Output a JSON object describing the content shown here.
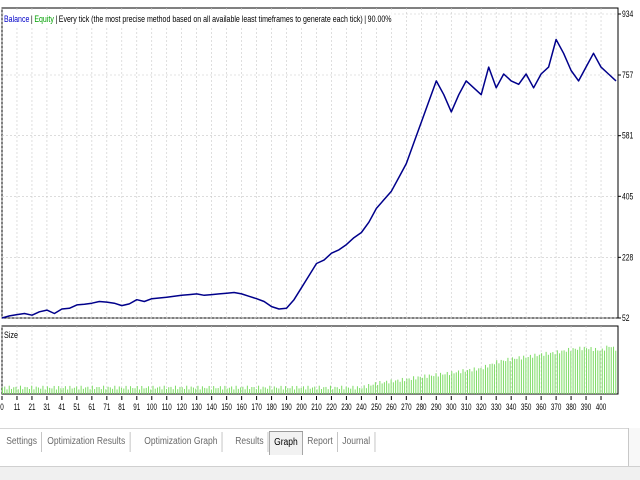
{
  "legend": {
    "balance": "Balance",
    "equity": "Equity",
    "description": "Every tick (the most precise method based on all available least timeframes to generate each tick)",
    "quality": "90.00%"
  },
  "size_label": "Size",
  "tabs": [
    {
      "label": "Settings",
      "active": false
    },
    {
      "label": "Optimization Results",
      "active": false
    },
    {
      "label": "Optimization Graph",
      "active": false
    },
    {
      "label": "Results",
      "active": false
    },
    {
      "label": "Graph",
      "active": true
    },
    {
      "label": "Report",
      "active": false
    },
    {
      "label": "Journal",
      "active": false
    }
  ],
  "colors": {
    "balance_line": "#00008b",
    "size_bars": "#7ddc64",
    "grid": "#c8c8c8",
    "axis": "#000000"
  },
  "chart_data": [
    {
      "type": "line",
      "series": [
        {
          "name": "Balance",
          "x": [
            0,
            5,
            10,
            15,
            20,
            25,
            30,
            35,
            40,
            45,
            50,
            55,
            60,
            65,
            70,
            75,
            80,
            85,
            90,
            95,
            100,
            105,
            110,
            115,
            120,
            125,
            130,
            135,
            140,
            145,
            150,
            155,
            160,
            165,
            170,
            175,
            180,
            185,
            190,
            195,
            200,
            205,
            210,
            215,
            220,
            225,
            230,
            235,
            240,
            245,
            250,
            255,
            260,
            265,
            270,
            275,
            280,
            285,
            290,
            295,
            300,
            305,
            310,
            315,
            320,
            325,
            330,
            335,
            340,
            345,
            350,
            355,
            360,
            365,
            370,
            375,
            380,
            385,
            390,
            395,
            400,
            405,
            410
          ],
          "values": [
            52,
            58,
            62,
            65,
            60,
            70,
            75,
            65,
            78,
            80,
            90,
            92,
            95,
            100,
            98,
            95,
            88,
            93,
            105,
            100,
            108,
            110,
            112,
            115,
            118,
            120,
            122,
            118,
            120,
            122,
            124,
            126,
            122,
            115,
            108,
            100,
            85,
            78,
            80,
            105,
            140,
            175,
            210,
            220,
            240,
            250,
            265,
            285,
            300,
            330,
            370,
            395,
            420,
            460,
            500,
            560,
            620,
            680,
            740,
            700,
            650,
            700,
            740,
            720,
            700,
            780,
            720,
            760,
            740,
            730,
            760,
            720,
            760,
            780,
            860,
            820,
            770,
            740,
            780,
            820,
            780,
            760,
            740
          ],
          "color": "#00008b"
        }
      ],
      "yticks": [
        "52",
        "228",
        "405",
        "581",
        "757",
        "934"
      ],
      "ylim": [
        52,
        934
      ],
      "xticks": [
        "0",
        "11",
        "21",
        "31",
        "41",
        "51",
        "61",
        "71",
        "81",
        "91",
        "100",
        "110",
        "120",
        "130",
        "140",
        "150",
        "160",
        "170",
        "180",
        "190",
        "200",
        "210",
        "220",
        "230",
        "240",
        "250",
        "260",
        "270",
        "280",
        "290",
        "300",
        "310",
        "320",
        "330",
        "340",
        "350",
        "360",
        "370",
        "380",
        "390",
        "400"
      ]
    },
    {
      "type": "bar",
      "series": [
        {
          "name": "Size",
          "x": [
            0,
            10,
            20,
            30,
            40,
            50,
            60,
            70,
            80,
            90,
            100,
            110,
            120,
            130,
            140,
            150,
            160,
            170,
            180,
            190,
            200,
            210,
            220,
            230,
            240,
            250,
            260,
            270,
            280,
            290,
            300,
            310,
            320,
            330,
            340,
            350,
            360,
            370,
            380,
            390,
            400,
            405,
            410
          ],
          "values": [
            0.1,
            0.1,
            0.1,
            0.1,
            0.1,
            0.1,
            0.1,
            0.1,
            0.1,
            0.1,
            0.1,
            0.1,
            0.1,
            0.1,
            0.1,
            0.1,
            0.1,
            0.1,
            0.1,
            0.1,
            0.1,
            0.1,
            0.1,
            0.1,
            0.1,
            0.17,
            0.2,
            0.23,
            0.27,
            0.3,
            0.33,
            0.37,
            0.4,
            0.5,
            0.55,
            0.58,
            0.62,
            0.65,
            0.7,
            0.72,
            0.68,
            0.75,
            0.7
          ],
          "color": "#7ddc64"
        }
      ]
    }
  ]
}
